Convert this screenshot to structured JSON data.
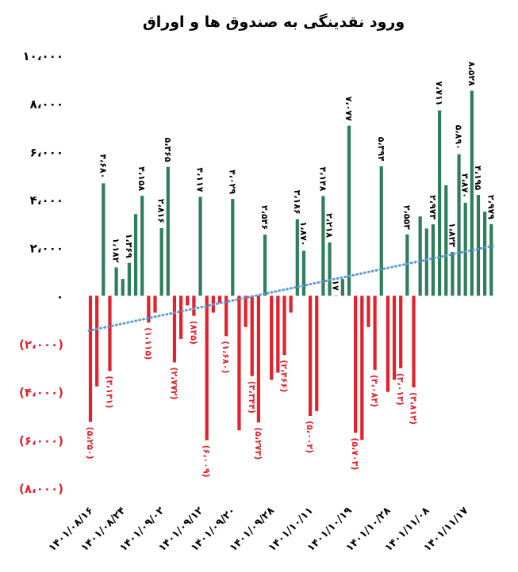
{
  "chart_data": {
    "type": "bar",
    "title": "ورود نقدینگی به صندوق ها و اوراق",
    "categories": [
      "۱۴۰۱/۰۸/۱۶",
      null,
      null,
      null,
      null,
      "۱۴۰۱/۰۸/۲۴",
      null,
      null,
      null,
      null,
      null,
      "۱۴۰۱/۰۹/۰۲",
      null,
      null,
      null,
      null,
      null,
      "۱۴۰۱/۰۹/۱۲",
      null,
      null,
      null,
      null,
      "۱۴۰۱/۰۹/۲۰",
      null,
      null,
      null,
      null,
      null,
      "۱۴۰۱/۰۹/۲۸",
      null,
      null,
      null,
      null,
      null,
      "۱۴۰۱/۱۰/۱۱",
      null,
      null,
      null,
      null,
      null,
      "۱۴۰۱/۱۰/۱۹",
      null,
      null,
      null,
      null,
      null,
      "۱۴۰۱/۱۰/۲۸",
      null,
      null,
      null,
      null,
      null,
      "۱۴۰۱/۱۱/۰۸",
      null,
      null,
      null,
      null,
      null,
      "۱۴۰۱/۱۱/۱۷",
      null,
      null,
      null,
      null
    ],
    "values": [
      -5250,
      -3770,
      4680,
      -3131,
      1182,
      700,
      1369,
      3400,
      4158,
      -1115,
      -700,
      2816,
      5365,
      -2772,
      -1800,
      -400,
      -835,
      4117,
      -6009,
      -700,
      -300,
      -1680,
      4029,
      -5600,
      -1300,
      -3344,
      -5273,
      2546,
      -3500,
      -3200,
      -2466,
      -700,
      3186,
      1870,
      -5002,
      -4800,
      4148,
      2218,
      17,
      700,
      7077,
      -5703,
      -6000,
      -1300,
      -3083,
      5394,
      -4000,
      -3500,
      -3013,
      2553,
      -3812,
      3300,
      2800,
      2973,
      7711,
      4600,
      1823,
      5890,
      3870,
      8528,
      4195,
      3500,
      2979
    ],
    "value_labels": [
      "(۵،۲۵۰)",
      null,
      "۴،۶۸۰",
      "(۳،۱۳۱)",
      "۱،۱۸۲",
      null,
      "۱،۳۶۹",
      null,
      "۴،۱۵۸",
      "(۱،۱۱۵)",
      null,
      "۲،۸۱۶",
      "۵،۳۶۵",
      "(۲،۷۷۲)",
      null,
      null,
      "(۸۳۵)",
      "۴،۱۱۷",
      "(۶،۰۰۹)",
      null,
      null,
      "(۱،۶۸۰)",
      "۴،۰۲۹",
      null,
      null,
      "(۳،۳۴۴)",
      "(۵،۲۷۳)",
      "۲،۵۴۶",
      null,
      null,
      "(۲،۴۶۶)",
      null,
      "۳،۱۸۶",
      "۱،۸۷۰",
      "(۵،۰۰۲)",
      null,
      "۴،۱۴۸",
      "۲،۲۱۸",
      "۱۷",
      null,
      "۷،۰۷۷",
      "(۵،۷۰۳)",
      null,
      null,
      "(۳،۰۸۳)",
      "۵،۳۹۴",
      null,
      null,
      "(۳،۰۱۳)",
      "۲،۵۵۳",
      "(۳،۸۱۲)",
      null,
      null,
      "۲،۹۷۳",
      "۷،۷۱۱",
      null,
      "۱،۸۲۳",
      "۵،۸۹۰",
      "۳،۸۷۰",
      "۸،۵۲۸",
      "۴،۱۹۵",
      null,
      "۲،۹۷۹"
    ],
    "positive_color": "#2e7d5b",
    "negative_color": "#e3202b",
    "trend_color": "#5b9bd5",
    "ylim": [
      -8000,
      10000
    ],
    "yticks": [
      {
        "value": 10000,
        "label": "۱۰،۰۰۰"
      },
      {
        "value": 8000,
        "label": "۸،۰۰۰"
      },
      {
        "value": 6000,
        "label": "۶،۰۰۰"
      },
      {
        "value": 4000,
        "label": "۴،۰۰۰"
      },
      {
        "value": 2000,
        "label": "۲،۰۰۰"
      },
      {
        "value": 0,
        "label": "۰"
      },
      {
        "value": -2000,
        "label": "(۲،۰۰۰)"
      },
      {
        "value": -4000,
        "label": "(۴،۰۰۰)"
      },
      {
        "value": -6000,
        "label": "(۶،۰۰۰)"
      },
      {
        "value": -8000,
        "label": "(۸،۰۰۰)"
      }
    ]
  }
}
